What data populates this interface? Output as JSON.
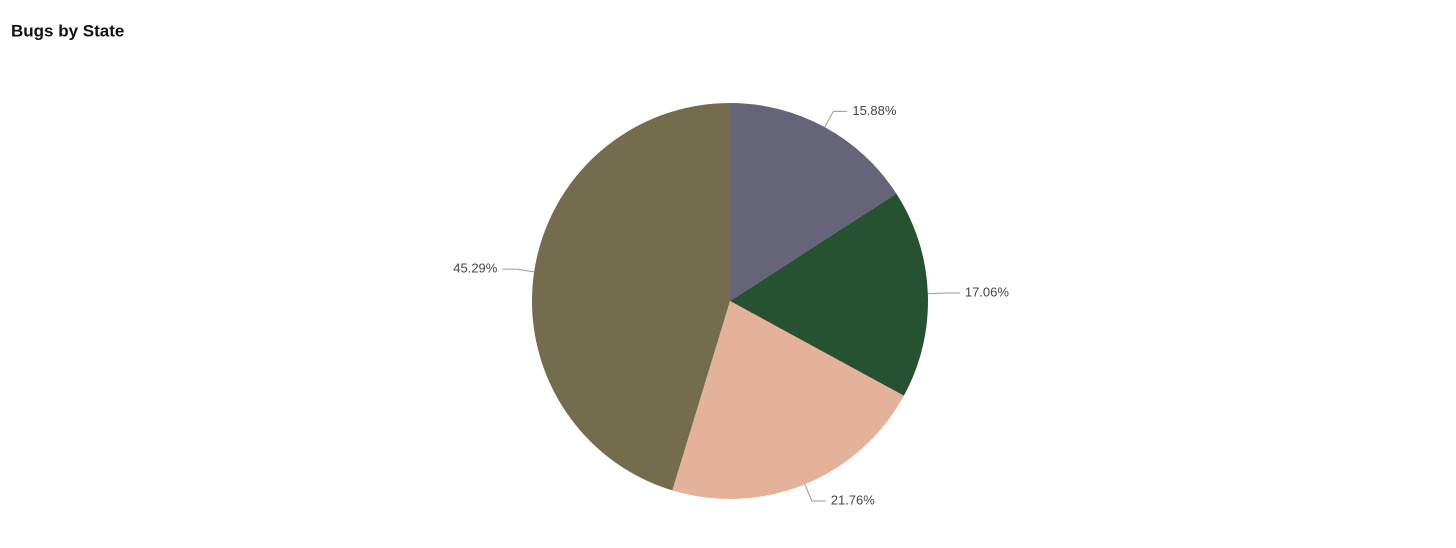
{
  "chart_data": {
    "type": "pie",
    "title": "Bugs by State",
    "values": [
      15.88,
      17.06,
      21.76,
      45.29
    ],
    "value_labels": [
      "15.88%",
      "17.06%",
      "21.76%",
      "45.29%"
    ],
    "colors": [
      "#666479",
      "#265232",
      "#e4b29b",
      "#736c4d"
    ]
  }
}
